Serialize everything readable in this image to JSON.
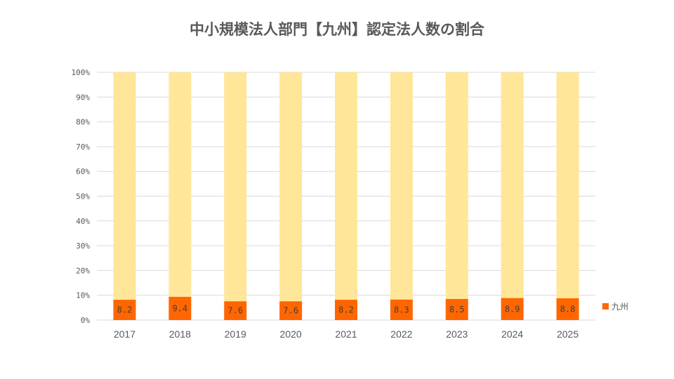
{
  "chart_data": {
    "type": "bar",
    "stacked": true,
    "title": "中小規模法人部門【九州】認定法人数の割合",
    "categories": [
      "2017",
      "2018",
      "2019",
      "2020",
      "2021",
      "2022",
      "2023",
      "2024",
      "2025"
    ],
    "series": [
      {
        "name": "九州",
        "values": [
          8.2,
          9.4,
          7.6,
          7.6,
          8.2,
          8.3,
          8.5,
          8.9,
          8.8
        ],
        "color": "#FF6600"
      },
      {
        "values": [
          91.8,
          90.6,
          92.4,
          92.4,
          91.8,
          91.7,
          91.5,
          91.1,
          91.2
        ],
        "color": "#FFE699"
      }
    ],
    "data_labels": [
      "8.2",
      "9.4",
      "7.6",
      "7.6",
      "8.2",
      "8.3",
      "8.5",
      "8.9",
      "8.8"
    ],
    "yticks": [
      "0%",
      "10%",
      "20%",
      "30%",
      "40%",
      "50%",
      "60%",
      "70%",
      "80%",
      "90%",
      "100%"
    ],
    "ylim": [
      0,
      100
    ],
    "grid": true,
    "legend": {
      "position": "right",
      "entries": [
        "九州"
      ]
    }
  }
}
